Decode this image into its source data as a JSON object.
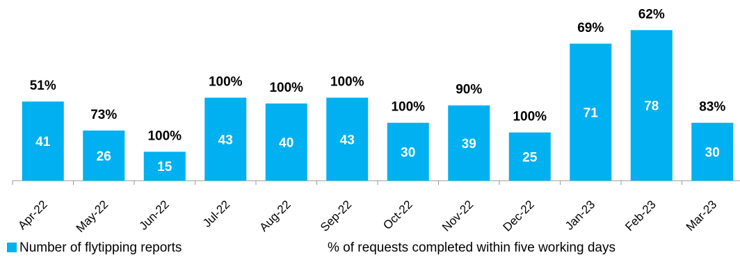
{
  "chart_data": {
    "type": "bar",
    "categories": [
      "Apr-22",
      "May-22",
      "Jun-22",
      "Jul-22",
      "Aug-22",
      "Sep-22",
      "Oct-22",
      "Nov-22",
      "Dec-22",
      "Jan-23",
      "Feb-23",
      "Mar-23"
    ],
    "series": [
      {
        "name": "Number of flytipping reports",
        "color": "#00b0f0",
        "values": [
          41,
          26,
          15,
          43,
          40,
          43,
          30,
          39,
          25,
          71,
          78,
          30
        ]
      },
      {
        "name": "% of requests completed within five working days",
        "values": [
          51,
          73,
          100,
          100,
          100,
          100,
          100,
          90,
          100,
          69,
          62,
          83
        ],
        "value_labels": [
          "51%",
          "73%",
          "100%",
          "100%",
          "100%",
          "100%",
          "100%",
          "90%",
          "100%",
          "69%",
          "62%",
          "83%"
        ]
      }
    ],
    "ylim": [
      0,
      90
    ]
  }
}
